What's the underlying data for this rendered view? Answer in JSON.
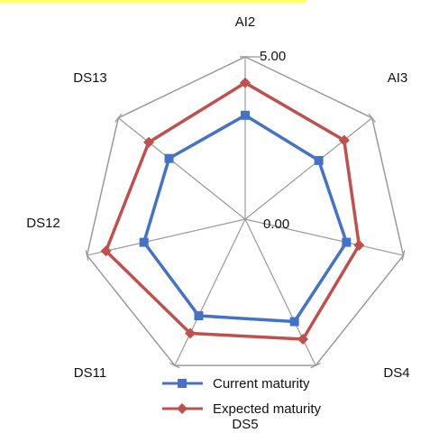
{
  "chart_data": {
    "type": "radar",
    "categories": [
      "AI2",
      "AI3",
      "DS4",
      "DS5",
      "DS11",
      "DS12",
      "DS13"
    ],
    "r_range": [
      0,
      5
    ],
    "tick_labels": [
      "0.00",
      "5.00"
    ],
    "series": [
      {
        "name": "Current maturity",
        "values": [
          3.2,
          2.9,
          3.2,
          3.5,
          3.3,
          3.2,
          3.0
        ],
        "color": "#4472C4",
        "marker": "square"
      },
      {
        "name": "Expected maturity",
        "values": [
          4.2,
          3.9,
          3.6,
          4.1,
          3.9,
          4.4,
          3.8
        ],
        "color": "#C0504D",
        "marker": "diamond"
      }
    ],
    "grid": true,
    "legend_position": "bottom"
  },
  "colors": {
    "highlight": "#FFFF66",
    "grid": "#999999"
  }
}
